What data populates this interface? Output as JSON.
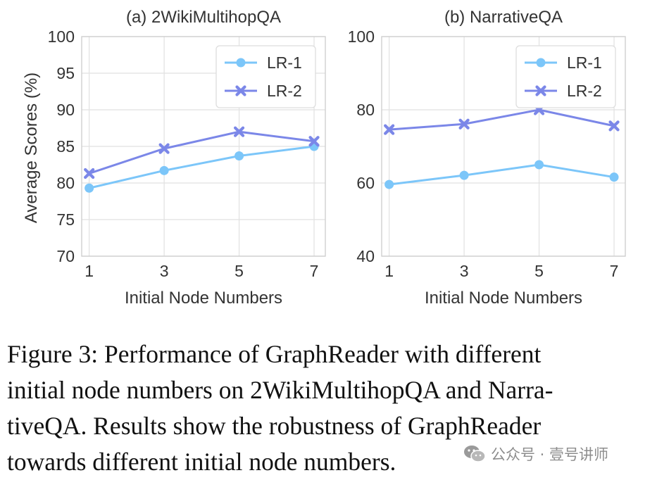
{
  "chart_data": [
    {
      "type": "line",
      "title": "(a) 2WikiMultihopQA",
      "xlabel": "Initial Node Numbers",
      "ylabel": "Average Scores (%)",
      "x": [
        1,
        3,
        5,
        7
      ],
      "xlim": [
        0.8,
        7.3
      ],
      "ylim": [
        70,
        100
      ],
      "yticks": [
        70,
        75,
        80,
        85,
        90,
        95,
        100
      ],
      "xticks": [
        1,
        3,
        5,
        7
      ],
      "grid": true,
      "legend_position": "top-right",
      "series": [
        {
          "name": "LR-1",
          "marker": "circle",
          "color": "#7cc6f9",
          "values": [
            79.3,
            81.7,
            83.7,
            85.0
          ]
        },
        {
          "name": "LR-2",
          "marker": "x",
          "color": "#7b87e8",
          "values": [
            81.3,
            84.7,
            87.0,
            85.7
          ]
        }
      ]
    },
    {
      "type": "line",
      "title": "(b) NarrativeQA",
      "xlabel": "Initial Node Numbers",
      "ylabel": "",
      "x": [
        1,
        3,
        5,
        7
      ],
      "xlim": [
        0.8,
        7.3
      ],
      "ylim": [
        40,
        100
      ],
      "yticks": [
        40,
        60,
        80,
        100
      ],
      "xticks": [
        1,
        3,
        5,
        7
      ],
      "grid": true,
      "legend_position": "top-right",
      "series": [
        {
          "name": "LR-1",
          "marker": "circle",
          "color": "#7cc6f9",
          "values": [
            59.6,
            62.1,
            65.0,
            61.6
          ]
        },
        {
          "name": "LR-2",
          "marker": "x",
          "color": "#7b87e8",
          "values": [
            74.6,
            76.1,
            80.0,
            75.6
          ]
        }
      ]
    }
  ],
  "caption": {
    "line1": "Figure 3: Performance of GraphReader with different",
    "line2": "initial node numbers on 2WikiMultihopQA and Narra-",
    "line3": "tiveQA. Results show the robustness of GraphReader",
    "line4": "towards different initial node numbers."
  },
  "watermark": {
    "icon": "wechat-icon",
    "text": "公众号 · 壹号讲师"
  }
}
